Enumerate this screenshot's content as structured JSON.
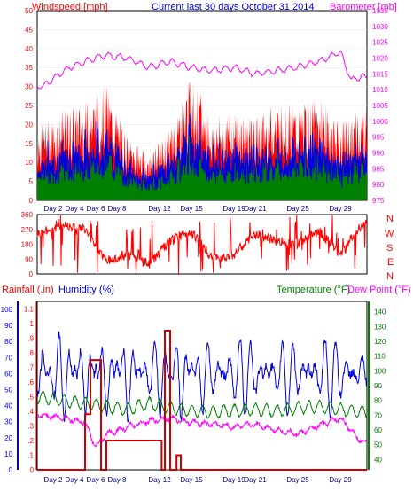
{
  "header": {
    "left_title": "Windspeed [mph]",
    "center_title": "Current last 30 days October 31 2014",
    "right_title": "Barometer [mb]"
  },
  "colors": {
    "red": "#ff0000",
    "blue": "#0000dd",
    "green": "#008000",
    "magenta": "#ff00ff",
    "darkred": "#cc0000",
    "frame": "#000000",
    "grid": "#cccccc"
  },
  "chart_data": [
    {
      "type": "area",
      "title": "",
      "ylabel_left": "Windspeed [mph]",
      "ylabel_right": "Barometer [mb]",
      "x_ticks": [
        "Day 2",
        "Day 4",
        "Day 6",
        "Day 8",
        "Day 12",
        "Day 15",
        "Day 19",
        "Day 21",
        "Day 25",
        "Day 29"
      ],
      "y_left_ticks": [
        "0",
        "5",
        "10",
        "15",
        "20",
        "25",
        "30",
        "35",
        "40",
        "45",
        "50"
      ],
      "y_left_lim": [
        0,
        50
      ],
      "y_right_ticks": [
        "975",
        "980",
        "985",
        "990",
        "995",
        "1000",
        "1005",
        "1010",
        "1015",
        "1020",
        "1025",
        "1030",
        "1035"
      ],
      "y_right_lim": [
        975,
        1035
      ],
      "series": [
        {
          "name": "Windspeed [mph]",
          "color": "#ff0000",
          "x_days": [
            1,
            3,
            5,
            7,
            9,
            11,
            13,
            15,
            17,
            19,
            21,
            23,
            25,
            27,
            29,
            31
          ],
          "values": [
            17,
            20,
            22,
            26,
            14,
            10,
            16,
            28,
            18,
            20,
            18,
            22,
            21,
            23,
            17,
            21
          ]
        },
        {
          "name": "Barometer [mb]",
          "color": "#ff00ff",
          "x_days": [
            1,
            3,
            5,
            7,
            9,
            11,
            13,
            15,
            17,
            19,
            21,
            23,
            25,
            27,
            29,
            30,
            31
          ],
          "values": [
            1011,
            1016,
            1019,
            1021,
            1020,
            1017,
            1019,
            1017,
            1016,
            1017,
            1015,
            1016,
            1017,
            1019,
            1022,
            1013,
            1014
          ]
        }
      ]
    },
    {
      "type": "line",
      "title": "",
      "ylabel_right": [
        "N",
        "W",
        "S",
        "E",
        "N"
      ],
      "y_ticks": [
        "0",
        "90",
        "180",
        "270",
        "360"
      ],
      "ylim": [
        0,
        360
      ],
      "series": [
        {
          "name": "Wind direction",
          "color": "#ff0000",
          "x_days": [
            1,
            3,
            5,
            7,
            9,
            11,
            13,
            15,
            17,
            19,
            21,
            23,
            25,
            27,
            29,
            31
          ],
          "values": [
            250,
            300,
            270,
            80,
            110,
            60,
            200,
            260,
            90,
            120,
            240,
            200,
            180,
            260,
            120,
            300
          ]
        }
      ]
    },
    {
      "type": "line",
      "title": "",
      "ylabel_left_1": "Rainfall (.in)",
      "ylabel_left_2": "Humidity (%)",
      "ylabel_right_1": "Temperature (°F)",
      "ylabel_right_2": "Dew Point (°F)",
      "x_ticks": [
        "Day 2",
        "Day 4",
        "Day 6",
        "Day 8",
        "Day 12",
        "Day 15",
        "Day 19",
        "Day 21",
        "Day 25",
        "Day 29"
      ],
      "humidity_ticks": [
        "0",
        "10",
        "20",
        "30",
        "40",
        "50",
        "60",
        "70",
        "80",
        "90",
        "100"
      ],
      "rain_ticks": [
        "0",
        ".1",
        ".2",
        ".3",
        ".4",
        ".5",
        ".6",
        ".7",
        ".8",
        ".9",
        "1",
        "1.1"
      ],
      "temp_ticks": [
        "40",
        "50",
        "60",
        "70",
        "80",
        "90",
        "100",
        "110",
        "120",
        "130",
        "140"
      ],
      "series": [
        {
          "name": "Humidity (%)",
          "color": "#0000dd",
          "x_days": [
            1,
            2,
            3,
            4,
            5,
            6,
            7,
            8,
            9,
            10,
            12,
            13,
            14,
            15,
            16,
            18,
            20,
            22,
            24,
            26,
            28,
            30,
            31
          ],
          "values": [
            45,
            75,
            95,
            55,
            90,
            55,
            90,
            50,
            95,
            55,
            90,
            60,
            95,
            50,
            88,
            60,
            92,
            55,
            90,
            55,
            92,
            60,
            50
          ]
        },
        {
          "name": "Temperature (°F)",
          "color": "#008000",
          "x_days": [
            1,
            3,
            5,
            7,
            9,
            11,
            13,
            15,
            17,
            19,
            21,
            23,
            25,
            27,
            29,
            31
          ],
          "values": [
            82,
            80,
            78,
            76,
            74,
            78,
            75,
            73,
            72,
            73,
            74,
            73,
            75,
            76,
            74,
            72
          ]
        },
        {
          "name": "Dew Point (°F)",
          "color": "#ff00ff",
          "x_days": [
            1,
            3,
            5,
            6,
            7,
            9,
            11,
            13,
            15,
            17,
            19,
            21,
            23,
            25,
            27,
            29,
            31
          ],
          "values": [
            70,
            68,
            65,
            48,
            57,
            62,
            66,
            68,
            65,
            64,
            62,
            64,
            60,
            57,
            63,
            68,
            52
          ]
        },
        {
          "name": "Rainfall (.in)",
          "color": "#cc0000",
          "x_days": [
            4,
            5,
            5.5,
            6.5,
            7,
            12.2,
            12.5,
            13,
            13.6,
            14,
            32
          ],
          "values": [
            0,
            0.38,
            0.75,
            0,
            0.2,
            0,
            0.95,
            0,
            0.1,
            0,
            0
          ]
        }
      ]
    }
  ]
}
